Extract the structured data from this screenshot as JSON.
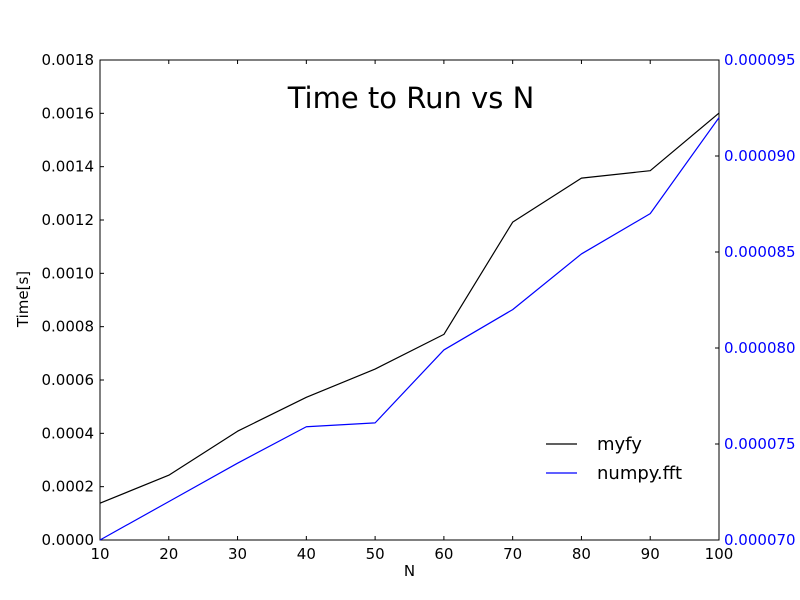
{
  "chart_data": {
    "type": "line",
    "title": "Time to Run vs N",
    "xlabel": "N",
    "ylabel": "Time[s]",
    "x": [
      10,
      20,
      30,
      40,
      50,
      60,
      70,
      80,
      90,
      100
    ],
    "xlim": [
      10,
      100
    ],
    "x_ticks": [
      "10",
      "20",
      "30",
      "40",
      "50",
      "60",
      "70",
      "80",
      "90",
      "100"
    ],
    "ylim_left": [
      0,
      0.0018
    ],
    "y_ticks_left": [
      "0.0000",
      "0.0002",
      "0.0004",
      "0.0006",
      "0.0008",
      "0.0010",
      "0.0012",
      "0.0014",
      "0.0016",
      "0.0018"
    ],
    "ylim_right": [
      7e-05,
      9.5e-05
    ],
    "y_ticks_right": [
      "0.000070",
      "0.000075",
      "0.000080",
      "0.000085",
      "0.000090",
      "0.000095"
    ],
    "series": [
      {
        "name": "myfy",
        "axis": "left",
        "color": "#000000",
        "values": [
          0.000138,
          0.000243,
          0.000408,
          0.000535,
          0.000641,
          0.000771,
          0.001192,
          0.001357,
          0.001385,
          0.001601
        ]
      },
      {
        "name": "numpy.fft",
        "axis": "right",
        "color": "#0000ff",
        "values": [
          7e-05,
          7.2e-05,
          7.4e-05,
          7.59e-05,
          7.61e-05,
          7.99e-05,
          8.2e-05,
          8.49e-05,
          8.7e-05,
          9.2e-05
        ]
      }
    ],
    "right_axis_color": "#0000ff",
    "grid": false,
    "legend_position": "lower-right"
  }
}
